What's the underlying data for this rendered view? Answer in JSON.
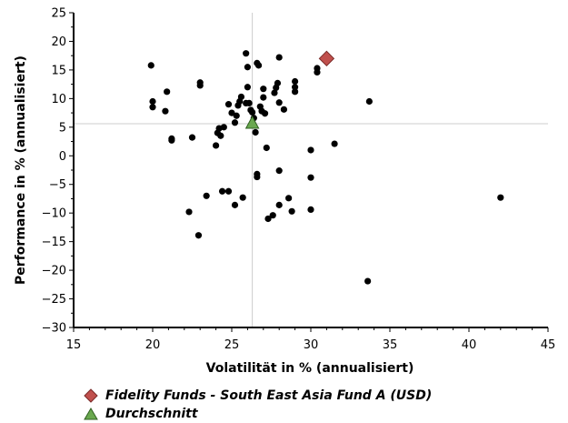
{
  "chart_data": {
    "type": "scatter",
    "xlabel": "Volatilität in % (annualisiert)",
    "ylabel": "Performance in % (annualisiert)",
    "xlim": [
      15,
      45
    ],
    "ylim": [
      -30,
      25
    ],
    "xticks": [
      15,
      20,
      25,
      30,
      35,
      40,
      45
    ],
    "yticks": [
      25,
      20,
      15,
      10,
      5,
      0,
      -5,
      -10,
      -15,
      -20,
      -25,
      -30
    ],
    "grid": false,
    "legend_position": "bottom-left",
    "series": [
      {
        "type": "scatter",
        "color": "#000000",
        "marker": "circle",
        "points": [
          [
            19.9,
            15.8
          ],
          [
            20.0,
            9.5
          ],
          [
            20.0,
            8.5
          ],
          [
            20.9,
            11.2
          ],
          [
            20.8,
            7.8
          ],
          [
            21.2,
            3.0
          ],
          [
            21.2,
            2.7
          ],
          [
            23.0,
            12.8
          ],
          [
            23.0,
            12.3
          ],
          [
            22.5,
            3.2
          ],
          [
            22.3,
            -9.8
          ],
          [
            22.9,
            -13.9
          ],
          [
            23.4,
            -7.0
          ],
          [
            24.0,
            1.8
          ],
          [
            24.2,
            4.8
          ],
          [
            24.1,
            4.0
          ],
          [
            24.3,
            3.5
          ],
          [
            24.5,
            5.0
          ],
          [
            24.4,
            -6.2
          ],
          [
            24.8,
            -6.2
          ],
          [
            24.8,
            9.0
          ],
          [
            25.0,
            7.5
          ],
          [
            25.3,
            7.0
          ],
          [
            25.2,
            5.8
          ],
          [
            25.4,
            8.8
          ],
          [
            25.5,
            9.5
          ],
          [
            25.6,
            10.3
          ],
          [
            25.2,
            -8.6
          ],
          [
            25.7,
            -7.3
          ],
          [
            25.9,
            9.2
          ],
          [
            25.9,
            17.9
          ],
          [
            26.0,
            15.5
          ],
          [
            26.0,
            12.0
          ],
          [
            26.1,
            9.2
          ],
          [
            26.2,
            8.0
          ],
          [
            26.3,
            7.6
          ],
          [
            26.4,
            6.6
          ],
          [
            26.5,
            4.1
          ],
          [
            26.6,
            16.2
          ],
          [
            26.7,
            15.8
          ],
          [
            26.8,
            8.6
          ],
          [
            26.9,
            7.8
          ],
          [
            27.0,
            11.7
          ],
          [
            27.0,
            10.2
          ],
          [
            27.1,
            7.4
          ],
          [
            26.6,
            -3.2
          ],
          [
            26.6,
            -3.7
          ],
          [
            27.2,
            1.4
          ],
          [
            27.3,
            -11.0
          ],
          [
            27.6,
            -10.4
          ],
          [
            27.7,
            11.0
          ],
          [
            27.8,
            11.9
          ],
          [
            27.9,
            12.7
          ],
          [
            28.0,
            9.3
          ],
          [
            28.0,
            17.2
          ],
          [
            28.3,
            8.1
          ],
          [
            28.0,
            -2.6
          ],
          [
            28.0,
            -8.6
          ],
          [
            28.6,
            -7.4
          ],
          [
            28.8,
            -9.7
          ],
          [
            29.0,
            13.0
          ],
          [
            29.0,
            12.0
          ],
          [
            29.0,
            11.2
          ],
          [
            30.0,
            1.0
          ],
          [
            30.0,
            -3.8
          ],
          [
            30.0,
            -9.4
          ],
          [
            30.4,
            15.3
          ],
          [
            30.4,
            14.6
          ],
          [
            31.5,
            2.1
          ],
          [
            33.7,
            9.5
          ],
          [
            33.6,
            -21.9
          ],
          [
            42.0,
            -7.3
          ]
        ]
      },
      {
        "name": "Fidelity Funds - South East Asia Fund A (USD)",
        "type": "scatter",
        "color": "#c0504d",
        "marker": "diamond",
        "points": [
          [
            31.0,
            17.0
          ]
        ]
      },
      {
        "name": "Durchschnitt",
        "type": "scatter",
        "color": "#6aa84f",
        "marker": "triangle",
        "points": [
          [
            26.3,
            5.6
          ]
        ]
      }
    ],
    "crosshair": {
      "x": 26.3,
      "y": 5.6,
      "color": "#cccccc"
    }
  }
}
